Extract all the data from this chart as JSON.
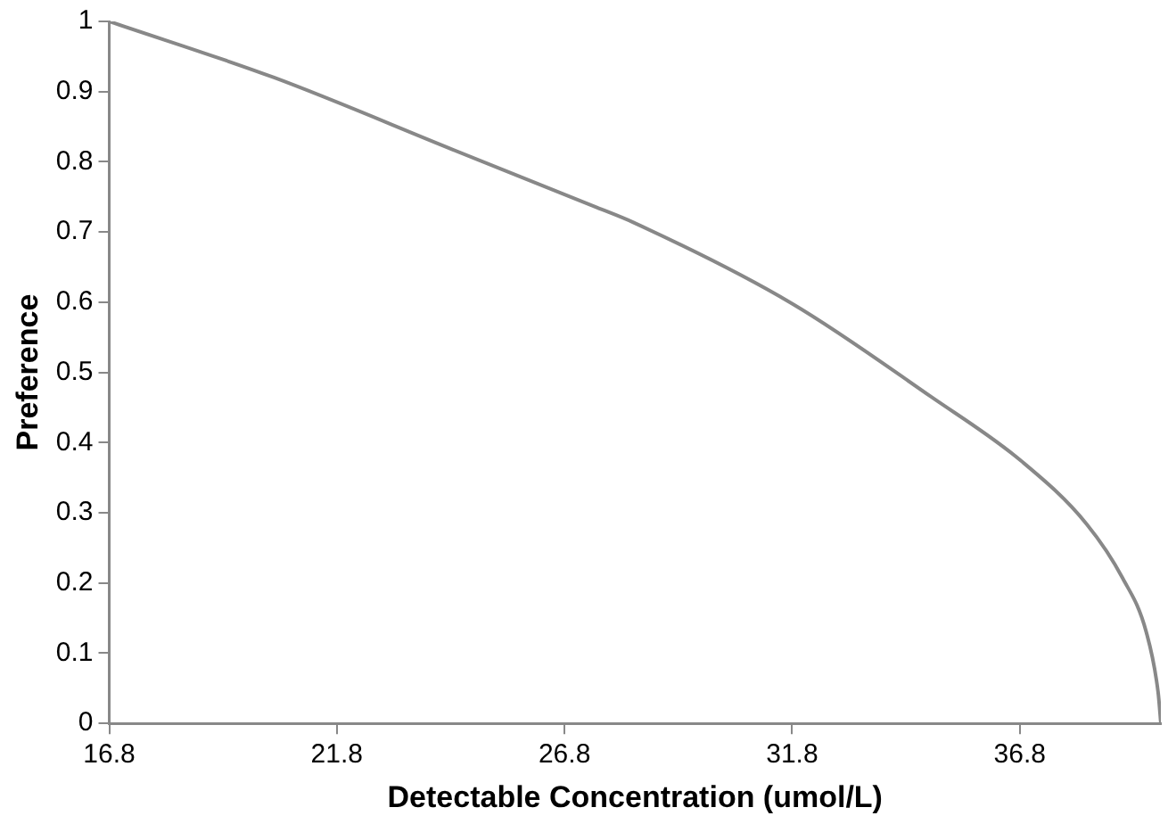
{
  "chart_data": {
    "type": "line",
    "xlabel": "Detectable Concentration (umol/L)",
    "ylabel": "Preference",
    "x": [
      16.8,
      20.42,
      24.36,
      27.51,
      28.3,
      31.8,
      34.86,
      36.83,
      38.27,
      39.06,
      39.58,
      39.84,
      39.9
    ],
    "series": [
      {
        "color": "#888888",
        "values": [
          1.0,
          0.92,
          0.817,
          0.735,
          0.714,
          0.598,
          0.465,
          0.374,
          0.284,
          0.207,
          0.13,
          0.044,
          0
        ]
      }
    ],
    "xlim": [
      16.8,
      39.9
    ],
    "xticks": [
      16.8,
      21.8,
      26.8,
      31.8,
      36.8
    ],
    "ylim": [
      0,
      1
    ],
    "yticks": [
      0,
      0.1,
      0.2,
      0.3,
      0.4,
      0.5,
      0.6,
      0.7,
      0.8,
      0.9,
      1
    ],
    "grid": false,
    "legend": false,
    "marker": "none",
    "line_style": "solid"
  }
}
